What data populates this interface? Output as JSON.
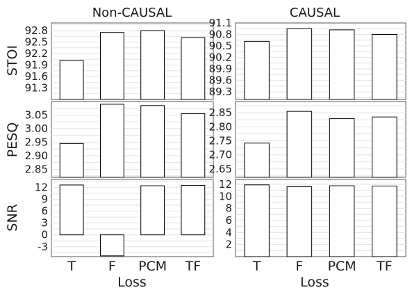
{
  "figure": {
    "column_titles": [
      "Non-CAUSAL",
      "CAUSAL"
    ],
    "row_labels": [
      "STOI",
      "PESQ",
      "SNR"
    ],
    "xlabel": "Loss"
  },
  "chart_data": [
    {
      "type": "bar",
      "panel": "Non-CAUSAL / STOI",
      "categories": [
        "T",
        "F",
        "PCM",
        "TF"
      ],
      "values": [
        92.02,
        92.75,
        92.8,
        92.62
      ],
      "ylabel": "STOI",
      "xlabel": "",
      "ylim": [
        91.0,
        93.0
      ],
      "yticks": [
        91.3,
        91.6,
        91.9,
        92.2,
        92.5,
        92.8
      ],
      "ytick_labels": [
        "91.3",
        "91.6",
        "91.9",
        "92.2",
        "92.5",
        "92.8"
      ],
      "show_xticks": false,
      "grid": true
    },
    {
      "type": "bar",
      "panel": "CAUSAL / STOI",
      "categories": [
        "T",
        "F",
        "PCM",
        "TF"
      ],
      "values": [
        90.62,
        90.95,
        90.92,
        90.8
      ],
      "ylabel": "",
      "xlabel": "",
      "ylim": [
        89.1,
        91.1
      ],
      "yticks": [
        89.3,
        89.6,
        89.9,
        90.2,
        90.5,
        90.8,
        91.1
      ],
      "ytick_labels": [
        "89.3",
        "89.6",
        "89.9",
        "90.2",
        "90.5",
        "90.8",
        "91.1"
      ],
      "show_xticks": false,
      "grid": true
    },
    {
      "type": "bar",
      "panel": "Non-CAUSAL / PESQ",
      "categories": [
        "T",
        "F",
        "PCM",
        "TF"
      ],
      "values": [
        2.945,
        3.09,
        3.085,
        3.055
      ],
      "ylabel": "PESQ",
      "xlabel": "",
      "ylim": [
        2.82,
        3.1
      ],
      "yticks": [
        2.85,
        2.9,
        2.95,
        3.0,
        3.05
      ],
      "ytick_labels": [
        "2.85",
        "2.90",
        "2.95",
        "3.00",
        "3.05"
      ],
      "show_xticks": false,
      "grid": true
    },
    {
      "type": "bar",
      "panel": "CAUSAL / PESQ",
      "categories": [
        "T",
        "F",
        "PCM",
        "TF"
      ],
      "values": [
        2.742,
        2.855,
        2.829,
        2.835
      ],
      "ylabel": "",
      "xlabel": "",
      "ylim": [
        2.62,
        2.89
      ],
      "yticks": [
        2.65,
        2.7,
        2.75,
        2.8,
        2.85
      ],
      "ytick_labels": [
        "2.65",
        "2.70",
        "2.75",
        "2.80",
        "2.85"
      ],
      "show_xticks": false,
      "grid": true
    },
    {
      "type": "bar",
      "panel": "Non-CAUSAL / SNR",
      "categories": [
        "T",
        "F",
        "PCM",
        "TF"
      ],
      "values": [
        12.6,
        -5.3,
        12.4,
        12.5
      ],
      "ylabel": "SNR",
      "xlabel": "Loss",
      "ylim": [
        -5.5,
        14
      ],
      "yticks": [
        -3,
        0,
        3,
        6,
        9,
        12
      ],
      "ytick_labels": [
        "-3",
        "0",
        "3",
        "6",
        "9",
        "12"
      ],
      "show_xticks": true,
      "grid": true
    },
    {
      "type": "bar",
      "panel": "CAUSAL / SNR",
      "categories": [
        "T",
        "F",
        "PCM",
        "TF"
      ],
      "values": [
        11.9,
        11.6,
        11.75,
        11.7
      ],
      "ylabel": "",
      "xlabel": "Loss",
      "ylim": [
        0,
        12.8
      ],
      "yticks": [
        2,
        4,
        6,
        8,
        10,
        12
      ],
      "ytick_labels": [
        "2",
        "4",
        "6",
        "8",
        "10",
        "12"
      ],
      "show_xticks": true,
      "grid": true
    }
  ]
}
